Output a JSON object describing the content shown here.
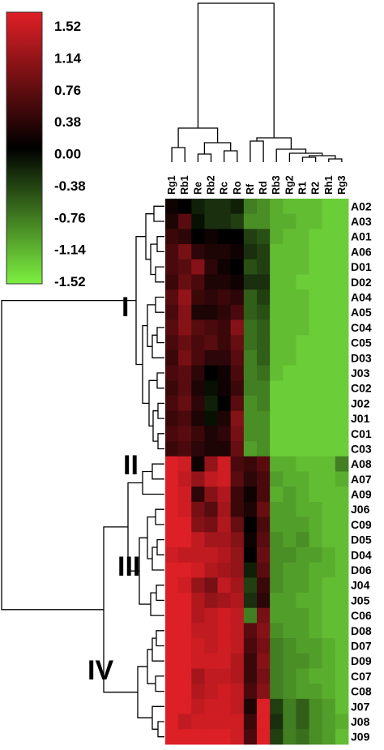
{
  "chart_data": {
    "type": "heatmap",
    "title": "",
    "columns": [
      "Rg1",
      "Rb1",
      "Re",
      "Rb2",
      "Rc",
      "Ro",
      "Rf",
      "Rd",
      "Rb3",
      "Rg2",
      "R1",
      "R2",
      "Rh1",
      "Rg3"
    ],
    "rows": [
      "A02",
      "A03",
      "A01",
      "A06",
      "D01",
      "D02",
      "A04",
      "A05",
      "C04",
      "C05",
      "D03",
      "J03",
      "C02",
      "J02",
      "J01",
      "C01",
      "C03",
      "A08",
      "A07",
      "A09",
      "J06",
      "C09",
      "D05",
      "D04",
      "D06",
      "J04",
      "J05",
      "C06",
      "D08",
      "D07",
      "D09",
      "C07",
      "C08",
      "J07",
      "J08",
      "J09"
    ],
    "values": [
      [
        0.1,
        0.0,
        -0.2,
        -0.3,
        -0.3,
        -0.2,
        -0.8,
        -0.9,
        -1.1,
        -1.2,
        -1.2,
        -1.2,
        -1.3,
        -1.3
      ],
      [
        0.2,
        0.6,
        -0.1,
        -0.3,
        -0.3,
        -0.4,
        -0.9,
        -0.9,
        -1.1,
        -1.1,
        -1.2,
        -1.2,
        -1.3,
        -1.3
      ],
      [
        0.4,
        0.3,
        0.0,
        0.1,
        0.0,
        0.0,
        -0.4,
        -0.5,
        -1.1,
        -1.2,
        -1.2,
        -1.3,
        -1.3,
        -1.3
      ],
      [
        0.5,
        0.8,
        0.3,
        0.2,
        0.2,
        0.1,
        -0.3,
        -0.4,
        -1.2,
        -1.2,
        -1.2,
        -1.3,
        -1.3,
        -1.3
      ],
      [
        0.5,
        0.6,
        0.9,
        0.3,
        0.1,
        0.0,
        -0.5,
        -0.4,
        -1.2,
        -1.2,
        -1.2,
        -1.3,
        -1.3,
        -1.3
      ],
      [
        0.4,
        0.7,
        0.5,
        0.2,
        0.2,
        0.1,
        -0.3,
        -0.3,
        -1.2,
        -1.2,
        -1.3,
        -1.3,
        -1.3,
        -1.3
      ],
      [
        0.6,
        1.0,
        0.4,
        0.3,
        0.4,
        0.3,
        -0.6,
        -0.4,
        -1.2,
        -1.2,
        -1.2,
        -1.3,
        -1.3,
        -1.3
      ],
      [
        0.5,
        0.9,
        0.2,
        0.2,
        0.3,
        0.5,
        -0.6,
        -0.5,
        -1.2,
        -1.2,
        -1.2,
        -1.3,
        -1.3,
        -1.3
      ],
      [
        0.6,
        0.9,
        0.6,
        0.5,
        0.4,
        0.9,
        -0.7,
        -0.6,
        -1.2,
        -1.2,
        -1.2,
        -1.3,
        -1.3,
        -1.3
      ],
      [
        0.5,
        0.7,
        0.5,
        0.6,
        0.4,
        0.7,
        -0.7,
        -0.6,
        -1.2,
        -1.2,
        -1.3,
        -1.3,
        -1.3,
        -1.3
      ],
      [
        0.4,
        0.8,
        0.5,
        0.3,
        0.3,
        0.6,
        -0.8,
        -0.6,
        -1.2,
        -1.2,
        -1.3,
        -1.3,
        -1.3,
        -1.3
      ],
      [
        0.5,
        0.6,
        0.3,
        0.0,
        0.1,
        0.5,
        -0.8,
        -0.7,
        -1.2,
        -1.3,
        -1.3,
        -1.3,
        -1.3,
        -1.3
      ],
      [
        0.4,
        0.6,
        0.2,
        -0.1,
        0.1,
        0.4,
        -0.8,
        -0.8,
        -1.3,
        -1.3,
        -1.3,
        -1.3,
        -1.3,
        -1.3
      ],
      [
        0.5,
        0.7,
        0.3,
        -0.2,
        0.0,
        0.6,
        -0.9,
        -0.8,
        -1.3,
        -1.3,
        -1.3,
        -1.3,
        -1.3,
        -1.3
      ],
      [
        0.4,
        0.5,
        0.2,
        -0.1,
        0.2,
        0.9,
        -0.9,
        -0.9,
        -1.3,
        -1.3,
        -1.3,
        -1.3,
        -1.3,
        -1.3
      ],
      [
        0.5,
        0.6,
        0.4,
        0.2,
        0.3,
        0.8,
        -0.9,
        -0.9,
        -1.3,
        -1.3,
        -1.3,
        -1.3,
        -1.3,
        -1.3
      ],
      [
        0.4,
        0.5,
        0.3,
        0.2,
        0.2,
        0.7,
        -1.0,
        -0.9,
        -1.3,
        -1.3,
        -1.3,
        -1.3,
        -1.3,
        -1.3
      ],
      [
        1.5,
        1.4,
        0.1,
        1.0,
        1.4,
        0.5,
        0.4,
        0.6,
        -1.1,
        -1.1,
        -1.2,
        -1.2,
        -1.2,
        -0.8
      ],
      [
        1.5,
        1.3,
        1.0,
        1.3,
        1.4,
        0.6,
        0.3,
        0.5,
        -1.0,
        -1.1,
        -1.1,
        -1.2,
        -1.2,
        -1.1
      ],
      [
        1.5,
        1.4,
        0.3,
        0.9,
        1.2,
        0.4,
        0.1,
        0.5,
        -1.1,
        -1.0,
        -1.1,
        -1.2,
        -1.2,
        -1.2
      ],
      [
        1.5,
        1.4,
        0.8,
        0.6,
        1.1,
        0.4,
        0.2,
        0.7,
        -1.0,
        -1.0,
        -1.1,
        -1.1,
        -1.2,
        -1.2
      ],
      [
        1.5,
        1.5,
        0.9,
        0.8,
        1.2,
        0.7,
        0.0,
        0.5,
        -1.0,
        -1.0,
        -1.0,
        -1.1,
        -1.2,
        -1.2
      ],
      [
        1.5,
        1.5,
        1.3,
        1.1,
        1.1,
        0.9,
        0.1,
        0.6,
        -0.9,
        -1.0,
        -0.9,
        -1.1,
        -1.2,
        -1.2
      ],
      [
        1.4,
        1.3,
        1.3,
        1.3,
        1.2,
        1.0,
        0.0,
        0.7,
        -0.9,
        -0.9,
        -1.0,
        -1.0,
        -1.1,
        -1.2
      ],
      [
        1.5,
        1.5,
        1.4,
        1.2,
        1.1,
        1.0,
        -0.2,
        0.6,
        -0.9,
        -1.0,
        -1.0,
        -1.1,
        -1.1,
        -1.2
      ],
      [
        1.5,
        1.4,
        1.0,
        0.8,
        1.3,
        1.1,
        -0.4,
        0.4,
        -0.9,
        -1.0,
        -1.0,
        -1.1,
        -1.2,
        -1.2
      ],
      [
        1.5,
        1.5,
        1.2,
        1.0,
        1.1,
        1.2,
        -0.3,
        0.3,
        -1.0,
        -1.0,
        -1.1,
        -1.1,
        -1.2,
        -1.2
      ],
      [
        1.5,
        1.5,
        1.2,
        1.3,
        1.4,
        1.3,
        -0.8,
        0.8,
        -1.0,
        -1.0,
        -1.0,
        -1.1,
        -1.2,
        -1.2
      ],
      [
        1.5,
        1.5,
        1.3,
        1.3,
        1.4,
        1.3,
        0.6,
        0.9,
        -0.9,
        -1.0,
        -1.0,
        -1.1,
        -1.2,
        -1.2
      ],
      [
        1.5,
        1.5,
        1.4,
        1.3,
        1.4,
        1.3,
        0.5,
        0.8,
        -0.8,
        -0.9,
        -1.0,
        -1.0,
        -1.1,
        -1.2
      ],
      [
        1.5,
        1.5,
        1.4,
        1.4,
        1.4,
        1.2,
        0.4,
        0.9,
        -0.8,
        -0.9,
        -0.9,
        -1.0,
        -1.1,
        -1.2
      ],
      [
        1.5,
        1.5,
        1.1,
        1.3,
        1.3,
        1.2,
        0.4,
        0.8,
        -0.8,
        -0.9,
        -1.0,
        -1.1,
        -1.1,
        -1.2
      ],
      [
        1.5,
        1.5,
        1.2,
        1.3,
        1.4,
        1.3,
        0.5,
        0.9,
        -0.8,
        -0.9,
        -1.0,
        -1.0,
        -1.1,
        -1.2
      ],
      [
        1.5,
        1.5,
        1.3,
        1.4,
        1.4,
        1.3,
        0.2,
        1.5,
        -0.4,
        -0.8,
        -0.6,
        -0.9,
        -1.0,
        -1.2
      ],
      [
        1.5,
        1.3,
        1.4,
        1.4,
        1.4,
        1.4,
        0.4,
        1.5,
        -0.3,
        -0.8,
        -0.6,
        -0.9,
        -1.0,
        -1.1
      ],
      [
        1.5,
        1.5,
        1.5,
        1.5,
        1.5,
        1.4,
        0.5,
        1.5,
        -0.4,
        -0.8,
        -0.7,
        -0.9,
        -1.0,
        -1.2
      ]
    ],
    "colorbar": {
      "ticks": [
        "1.52",
        "1.14",
        "0.76",
        "0.38",
        "0.00",
        "-0.38",
        "-0.76",
        "-1.14",
        "-1.52"
      ],
      "min": -1.52,
      "max": 1.52,
      "colors": {
        "high": "#e01f26",
        "mid": "#000000",
        "low": "#7df040"
      }
    },
    "clusters": [
      {
        "label": "I",
        "rows": [
          "A02",
          "C03"
        ]
      },
      {
        "label": "II",
        "rows": [
          "A08",
          "A09"
        ]
      },
      {
        "label": "III",
        "rows": [
          "J06",
          "C06"
        ]
      },
      {
        "label": "IV",
        "rows": [
          "D08",
          "J09"
        ]
      }
    ],
    "row_dendrogram": true,
    "column_dendrogram": true
  }
}
